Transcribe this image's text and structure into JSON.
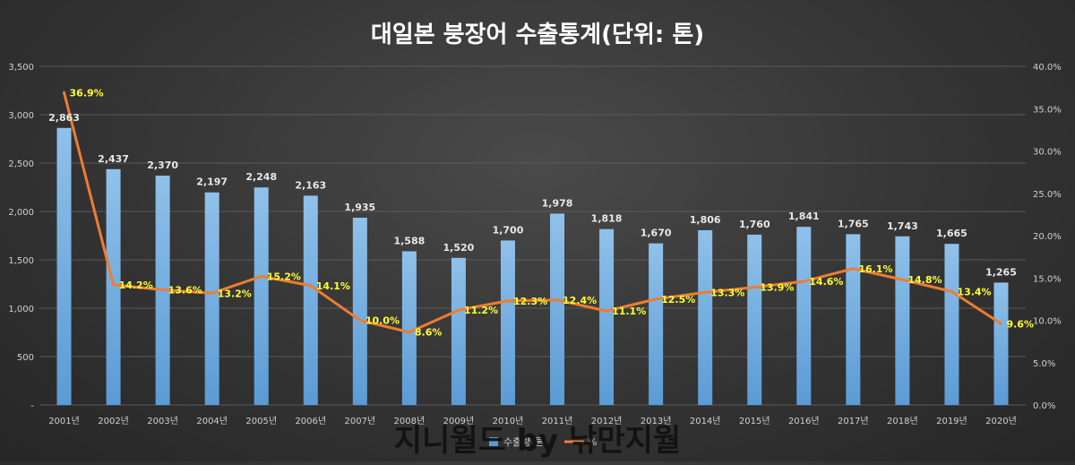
{
  "chart_data": {
    "type": "bar",
    "title": "대일본 붕장어 수출통계(단위: 톤)",
    "categories": [
      "2001년",
      "2002년",
      "2003년",
      "2004년",
      "2005년",
      "2006년",
      "2007년",
      "2008년",
      "2009년",
      "2010년",
      "2011년",
      "2012년",
      "2013년",
      "2014년",
      "2015년",
      "2016년",
      "2017년",
      "2018년",
      "2019년",
      "2020년"
    ],
    "series": [
      {
        "name": "수출량(톤)",
        "type": "bar",
        "axis": "left",
        "values": [
          2863,
          2437,
          2370,
          2197,
          2248,
          2163,
          1935,
          1588,
          1520,
          1700,
          1978,
          1818,
          1670,
          1806,
          1760,
          1841,
          1765,
          1743,
          1665,
          1265
        ],
        "labels": [
          "2,863",
          "2,437",
          "2,370",
          "2,197",
          "2,248",
          "2,163",
          "1,935",
          "1,588",
          "1,520",
          "1,700",
          "1,978",
          "1,818",
          "1,670",
          "1,806",
          "1,760",
          "1,841",
          "1,765",
          "1,743",
          "1,665",
          "1,265"
        ],
        "color": "#5b9bd5"
      },
      {
        "name": "%",
        "type": "line",
        "axis": "right",
        "values": [
          36.9,
          14.2,
          13.6,
          13.2,
          15.2,
          14.1,
          10.0,
          8.6,
          11.2,
          12.3,
          12.4,
          11.1,
          12.5,
          13.3,
          13.9,
          14.6,
          16.1,
          14.8,
          13.4,
          9.6
        ],
        "labels": [
          "36.9%",
          "14.2%",
          "13.6%",
          "13.2%",
          "15.2%",
          "14.1%",
          "10.0%",
          "8.6%",
          "11.2%",
          "12.3%",
          "12.4%",
          "11.1%",
          "12.5%",
          "13.3%",
          "13.9%",
          "14.6%",
          "16.1%",
          "14.8%",
          "13.4%",
          "9.6%"
        ],
        "color": "#ed7d31"
      }
    ],
    "y_left": {
      "min": 0,
      "max": 3500,
      "ticks": [
        0,
        500,
        1000,
        1500,
        2000,
        2500,
        3000,
        3500
      ],
      "tick_labels": [
        "-",
        "500",
        "1,000",
        "1,500",
        "2,000",
        "2,500",
        "3,000",
        "3,500"
      ]
    },
    "y_right": {
      "min": 0,
      "max": 40,
      "ticks": [
        0,
        5,
        10,
        15,
        20,
        25,
        30,
        35,
        40
      ],
      "tick_labels": [
        "0.0%",
        "5.0%",
        "10.0%",
        "15.0%",
        "20.0%",
        "25.0%",
        "30.0%",
        "35.0%",
        "40.0%"
      ]
    },
    "grid": true,
    "legend_position": "bottom",
    "colors": {
      "bar": "#5b9bd5",
      "line": "#ed7d31",
      "pct_label": "#ffff33",
      "gridline": "#5a5a5a"
    }
  },
  "legend": {
    "bar_label": "수출량(톤)",
    "line_label": "%"
  },
  "watermark": "지니월드 by 낚만지월"
}
